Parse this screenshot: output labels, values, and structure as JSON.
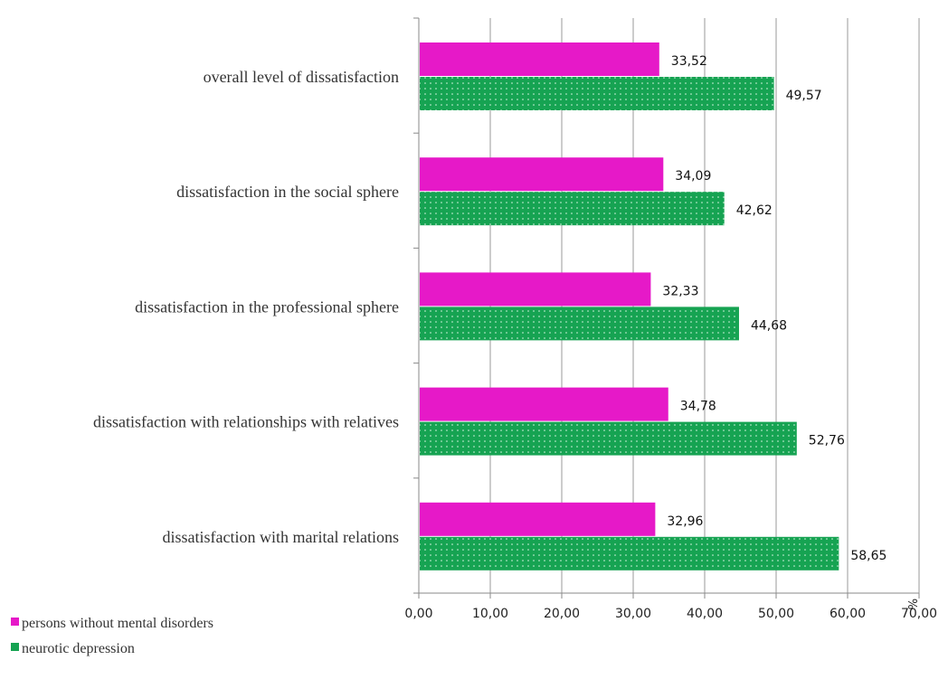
{
  "chart_data": {
    "type": "bar",
    "orientation": "horizontal",
    "categories": [
      "overall level of dissatisfaction",
      "dissatisfaction in the social sphere",
      "dissatisfaction in the professional sphere",
      "dissatisfaction with relationships with relatives",
      "dissatisfaction with marital relations"
    ],
    "series": [
      {
        "name": "persons without mental disorders",
        "color": "#e619c8",
        "values": [
          33.52,
          34.09,
          32.33,
          34.78,
          32.96
        ],
        "labels": [
          "33,52",
          "34,09",
          "32,33",
          "34,78",
          "32,96"
        ]
      },
      {
        "name": "neurotic depression",
        "color": "#16a352",
        "pattern": "dotted",
        "values": [
          49.57,
          42.62,
          44.68,
          52.76,
          58.65
        ],
        "labels": [
          "49,57",
          "42,62",
          "44,68",
          "52,76",
          "58,65"
        ]
      }
    ],
    "xlim": [
      0,
      70
    ],
    "x_ticks": [
      "0,00",
      "10,00",
      "20,00",
      "30,00",
      "40,00",
      "50,00",
      "60,00",
      "70,00"
    ],
    "x_unit": "%",
    "grid": "vertical",
    "legend_position": "bottom-left"
  }
}
